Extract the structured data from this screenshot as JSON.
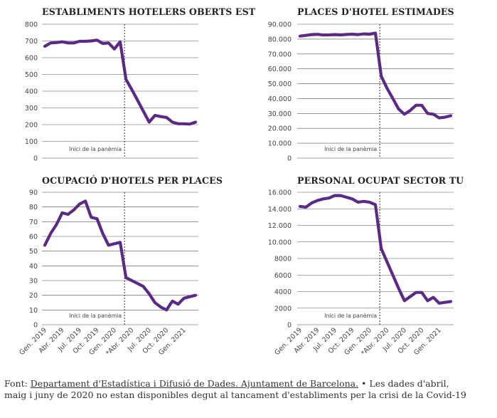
{
  "line_color": "#5b2a86",
  "annotation": "Inici de la panèmia",
  "footer": {
    "prefix": "Font: ",
    "source_link": "Departament d'Estadística i Difusió de Dades. Ajuntament de Barcelona.",
    "note": " • Les dades d'abril, maig i juny de 2020 no estan disponibles degut al tancament d'establiments per la crisi de la Covid-19"
  },
  "chart_data": [
    {
      "type": "line",
      "title": "ESTABLIMENTS HOTELERS OBERTS EST",
      "ylim": [
        0,
        800
      ],
      "yticks": [
        0,
        100,
        200,
        300,
        400,
        500,
        600,
        700,
        800
      ],
      "ytick_labels": [
        "0",
        "100",
        "200",
        "300",
        "400",
        "500",
        "600",
        "700",
        "800"
      ],
      "n_months": 27,
      "pandemic_index": 14,
      "values": [
        668,
        688,
        690,
        695,
        688,
        688,
        698,
        698,
        700,
        705,
        685,
        688,
        652,
        695,
        470,
        410,
        345,
        280,
        215,
        255,
        248,
        243,
        215,
        205,
        205,
        203,
        215
      ],
      "xtick_labels": []
    },
    {
      "type": "line",
      "title": "PLACES D'HOTEL ESTIMADES",
      "ylim": [
        0,
        90000
      ],
      "yticks": [
        0,
        10000,
        20000,
        30000,
        40000,
        50000,
        60000,
        70000,
        80000,
        90000
      ],
      "ytick_labels": [
        "0",
        "10.000",
        "20.000",
        "30.000",
        "40.000",
        "50.000",
        "60.000",
        "70.000",
        "80.000",
        "90.000"
      ],
      "n_months": 27,
      "pandemic_index": 14,
      "values": [
        82000,
        82500,
        83000,
        83200,
        82700,
        82800,
        83000,
        82800,
        83100,
        83300,
        83000,
        83500,
        83300,
        84000,
        55000,
        47000,
        40000,
        33000,
        29500,
        32000,
        35500,
        35500,
        30000,
        29500,
        27000,
        27500,
        28500
      ],
      "xtick_labels": []
    },
    {
      "type": "line",
      "title": "OCUPACIÓ D'HOTELS PER PLACES",
      "ylim": [
        0,
        90
      ],
      "yticks": [
        0,
        10,
        20,
        30,
        40,
        50,
        60,
        70,
        80,
        90
      ],
      "ytick_labels": [
        "0",
        "10",
        "20",
        "30",
        "40",
        "50",
        "60",
        "70",
        "80",
        "90"
      ],
      "n_months": 27,
      "pandemic_index": 14,
      "values": [
        54,
        62,
        68,
        76,
        75,
        78,
        82,
        84,
        73,
        72,
        62,
        54,
        55,
        56,
        32,
        30,
        28,
        26,
        21,
        15,
        12,
        10,
        16,
        14,
        18,
        19,
        20
      ],
      "xtick_labels": [
        "Gen. 2019",
        "Abr. 2019",
        "Jul. 2019",
        "Oct. 2019",
        "Gen. 2020",
        "*Abr. 2020",
        "Jul. 2020",
        "Oct. 2020",
        "Gen. 2021"
      ]
    },
    {
      "type": "line",
      "title": "PERSONAL OCUPAT SECTOR TU",
      "ylim": [
        0,
        16000
      ],
      "yticks": [
        0,
        2000,
        4000,
        6000,
        8000,
        10000,
        12000,
        14000,
        16000
      ],
      "ytick_labels": [
        "0",
        "2000",
        "4000",
        "6000",
        "8000",
        "10.000",
        "12.000",
        "14.000",
        "16.000"
      ],
      "n_months": 27,
      "pandemic_index": 14,
      "values": [
        14300,
        14200,
        14700,
        15000,
        15200,
        15300,
        15600,
        15600,
        15400,
        15200,
        14800,
        14900,
        14800,
        14500,
        9200,
        7600,
        6000,
        4400,
        2900,
        3400,
        3900,
        3900,
        2900,
        3300,
        2600,
        2700,
        2800
      ],
      "xtick_labels": [
        "Gen. 2019",
        "Abr. 2019",
        "Jul. 2019",
        "Oct. 2019",
        "Gen. 2020",
        "*Abr. 2020",
        "Jul. 2020",
        "Oct. 2020",
        "Gen. 2021"
      ]
    }
  ]
}
